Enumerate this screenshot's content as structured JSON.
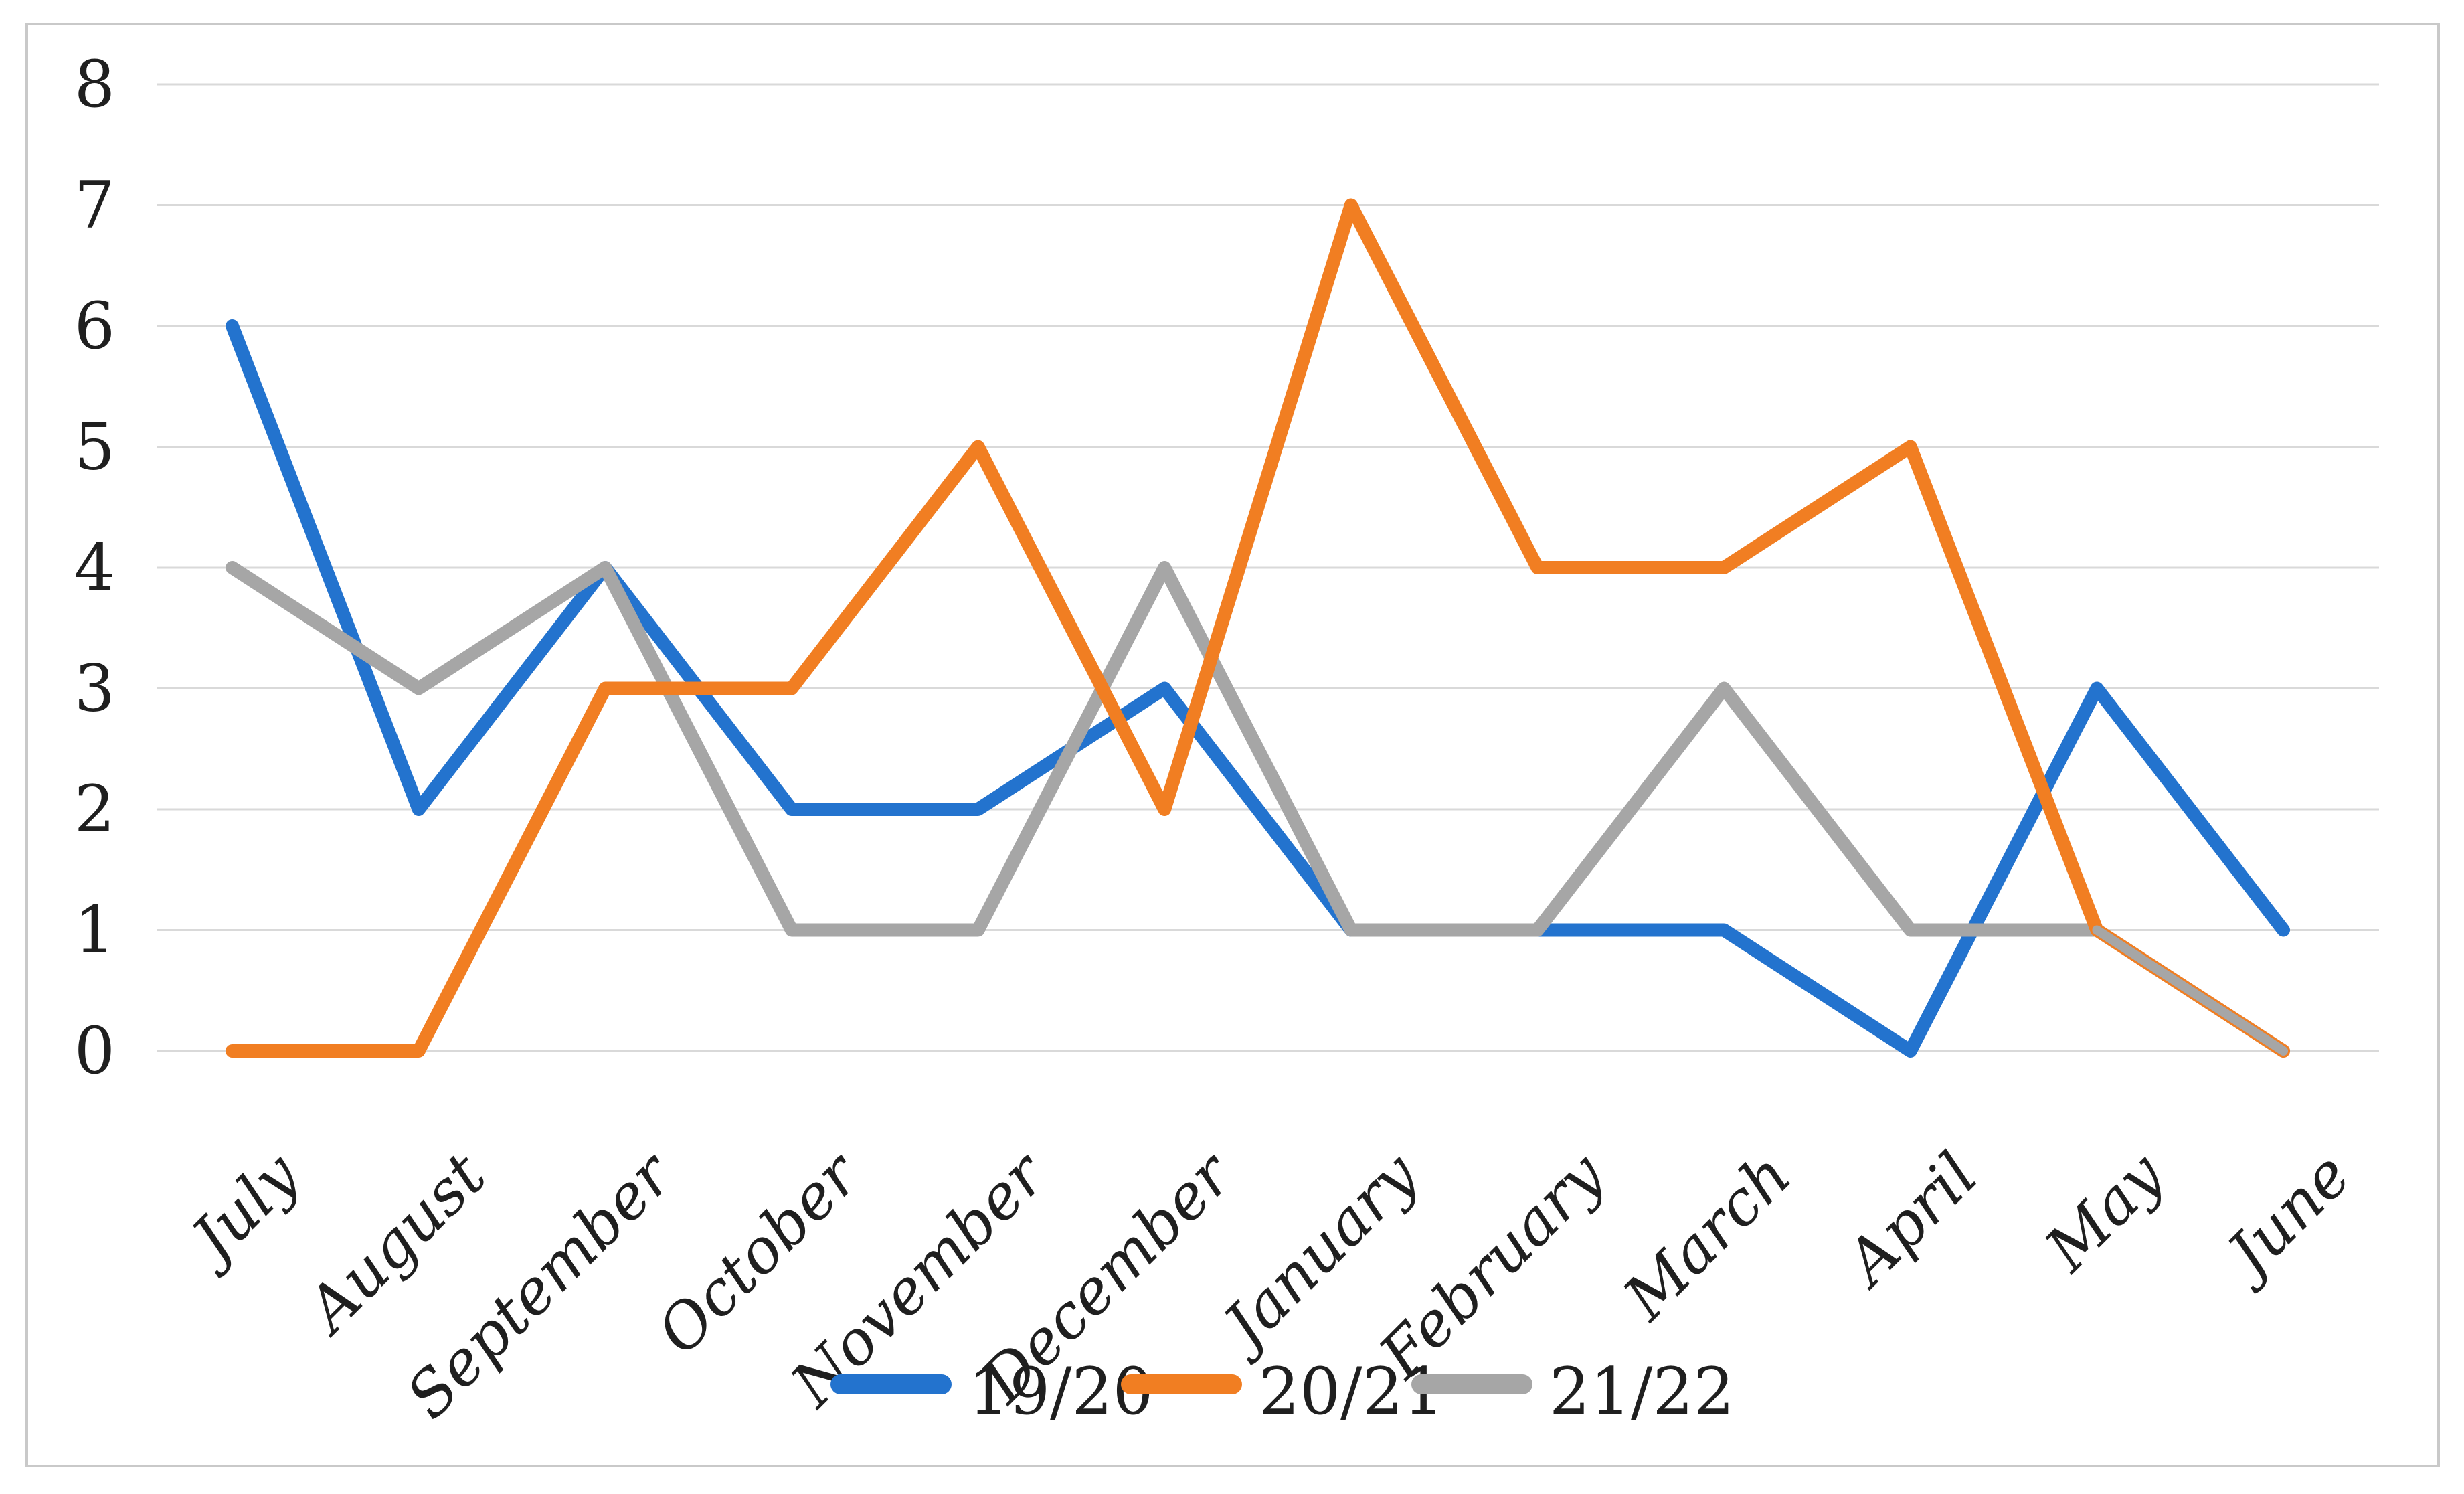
{
  "figure": {
    "background_color": "#ffffff",
    "border_color": "#c9c9c9"
  },
  "chart_data": {
    "type": "line",
    "title": "",
    "xlabel": "",
    "ylabel": "",
    "categories": [
      "July",
      "August",
      "September",
      "October",
      "November",
      "December",
      "January",
      "February",
      "March",
      "April",
      "May",
      "June"
    ],
    "series": [
      {
        "name": "19/20",
        "color": "#2373CE",
        "values": [
          6,
          2,
          4,
          2,
          2,
          3,
          1,
          1,
          1,
          0,
          3,
          1
        ]
      },
      {
        "name": "20/21",
        "color": "#F17E22",
        "values": [
          0,
          0,
          3,
          3,
          5,
          2,
          7,
          4,
          4,
          5,
          1,
          0
        ]
      },
      {
        "name": "21/22",
        "color": "#A6A6A6",
        "values": [
          4,
          3,
          4,
          1,
          1,
          4,
          1,
          1,
          3,
          1,
          1,
          0
        ]
      }
    ],
    "ylim": [
      0,
      8
    ],
    "ytick_step": 1,
    "ytick_labels": [
      "0",
      "1",
      "2",
      "3",
      "4",
      "5",
      "6",
      "7",
      "8"
    ],
    "grid": "horizontal",
    "gridline_color": "#D9D9D9",
    "legend_position": "bottom",
    "legend_entries": [
      "19/20",
      "20/21",
      "21/22"
    ],
    "x_labels_rotation_deg": -45
  }
}
